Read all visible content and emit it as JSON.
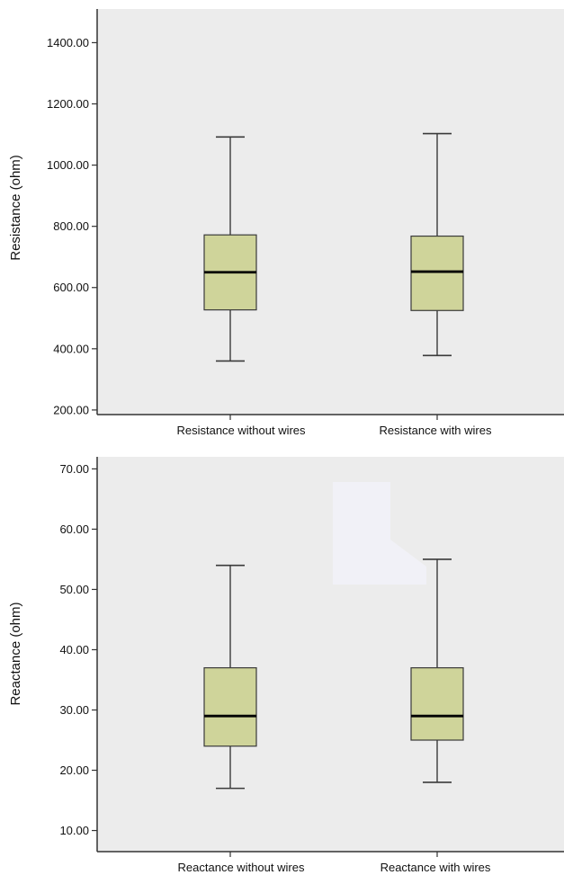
{
  "colors": {
    "plot_background": "#ececec",
    "box_fill": "#cfd49a",
    "box_stroke": "#3a3a3a",
    "median": "#000000",
    "axis": "#333333",
    "pale_patch": "#f1f1f7"
  },
  "chart_data": [
    {
      "type": "box",
      "title": "",
      "xlabel": "",
      "ylabel": "Resistance (ohm)",
      "ylim": [
        185,
        1510
      ],
      "y_ticks": [
        "200.00",
        "400.00",
        "600.00",
        "800.00",
        "1000.00",
        "1200.00",
        "1400.00"
      ],
      "y_tick_values": [
        200,
        400,
        600,
        800,
        1000,
        1200,
        1400
      ],
      "grid": false,
      "categories": [
        "Resistance without wires",
        "Resistance with wires"
      ],
      "series": [
        {
          "min": 360,
          "q1": 527,
          "median": 650,
          "q3": 772,
          "max": 1092
        },
        {
          "min": 378,
          "q1": 525,
          "median": 652,
          "q3": 768,
          "max": 1103
        }
      ]
    },
    {
      "type": "box",
      "title": "",
      "xlabel": "",
      "ylabel": "Reactance (ohm)",
      "ylim": [
        6.5,
        72
      ],
      "y_ticks": [
        "10.00",
        "20.00",
        "30.00",
        "40.00",
        "50.00",
        "60.00",
        "70.00"
      ],
      "y_tick_values": [
        10,
        20,
        30,
        40,
        50,
        60,
        70
      ],
      "grid": false,
      "categories": [
        "Reactance without wires",
        "Reactance with wires"
      ],
      "series": [
        {
          "min": 17,
          "q1": 24,
          "median": 29,
          "q3": 37,
          "max": 54
        },
        {
          "min": 18,
          "q1": 25,
          "median": 29,
          "q3": 37,
          "max": 55
        }
      ]
    }
  ]
}
